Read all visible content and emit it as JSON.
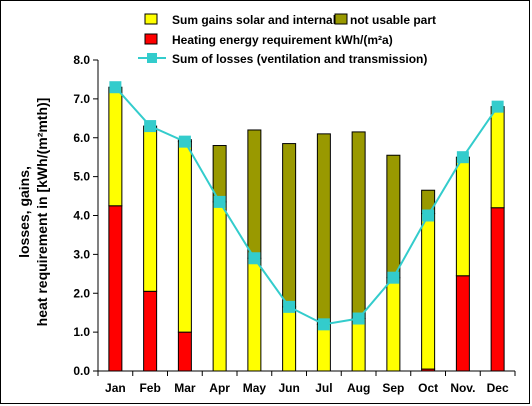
{
  "chart_data": {
    "type": "bar",
    "stacked": true,
    "categories": [
      "Jan",
      "Feb",
      "Mar",
      "Apr",
      "May",
      "Jun",
      "Jul",
      "Aug",
      "Sep",
      "Oct",
      "Nov.",
      "Dec"
    ],
    "ylabel_lines": [
      "losses, gains,",
      "heat requirement in [kWh/(m²mth)]"
    ],
    "ylim": [
      0,
      8
    ],
    "yticks": [
      "0.0",
      "1.0",
      "2.0",
      "3.0",
      "4.0",
      "5.0",
      "6.0",
      "7.0",
      "8.0"
    ],
    "grid": false,
    "legend_position": "top",
    "series": [
      {
        "name": "Heating energy requirement     kWh/(m²a)",
        "color": "#ff0000",
        "kind": "bar",
        "values": [
          4.25,
          2.05,
          1.0,
          0,
          0,
          0,
          0,
          0,
          0,
          0.05,
          2.45,
          4.2
        ]
      },
      {
        "name": "Sum gains solar and internal",
        "color": "#ffff00",
        "kind": "bar",
        "values": [
          3.05,
          4.25,
          4.9,
          4.35,
          2.9,
          1.65,
          1.2,
          1.35,
          2.4,
          4.0,
          3.05,
          2.6
        ]
      },
      {
        "name": "not usable part",
        "color": "#999900",
        "kind": "bar",
        "values": [
          0,
          0,
          0.05,
          1.45,
          3.3,
          4.2,
          4.9,
          4.8,
          3.15,
          0.6,
          0,
          0
        ]
      },
      {
        "name": "Sum of losses (ventilation and transmission)",
        "color": "#33cccc",
        "kind": "line",
        "values": [
          7.3,
          6.3,
          5.9,
          4.35,
          2.9,
          1.65,
          1.2,
          1.35,
          2.4,
          4.0,
          5.5,
          6.8
        ]
      }
    ]
  }
}
